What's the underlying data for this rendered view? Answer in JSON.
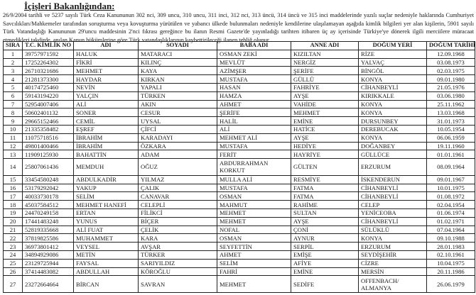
{
  "title": "İçişleri Bakanlığından:",
  "paragraph": "26/9/2004 tarihli ve 5237 sayılı Türk Ceza Kanununun 302 nci, 309 uncu, 310 uncu, 311 inci, 312 nci, 313 üncü, 314 üncü ve 315 inci maddelerinde yazılı suçlar nedeniyle haklarında Cumhuriyet Savcılıkları/Mahkemeler tarafından soruşturma veya kovuşturma yürütülen ve yabancı ülkede bulunmaları nedeniyle kendilerine ulaşılamayan aşağıda kimlik bilgileri yer alan kişilerin, 5901 sayılı Türk Vatandaşlığı Kanununun 29'uncu maddesinin 2'nci fıkrası gereğince bu ilanın Resmi Gazete'de yayınladığı tarihten itibaren üç ay içerisinde Türkiye'ye dönerek ilgili merciilere müracaat etmedikleri takdirde, anılan Kanun hükümlerine göre Türk vatandaşlıklarının kaybettirileceği ilanen tebliğ olunur.",
  "table": {
    "headers": [
      "SIRA",
      "T.C. KİMLİK NO",
      "ADI",
      "SOYADI",
      "BABA ADI",
      "ANNE ADI",
      "DOĞUM YERİ",
      "DOĞUM TARİHİ"
    ],
    "rows": [
      [
        "1",
        "39757971592",
        "HALUK",
        "MATARACI",
        "OSMAN ZEKİ",
        "KIZILTAN",
        "RİZE",
        "12.09.1968"
      ],
      [
        "2",
        "17252264302",
        "FİKRİ",
        "KILINÇ",
        "MEVLÜT",
        "NERGİZ",
        "YALVAÇ",
        "03.08.1973"
      ],
      [
        "3",
        "26710321686",
        "MEHMET",
        "KAYA",
        "AZİMŞER",
        "ŞERİFE",
        "BİNGÖL",
        "02.03.1975"
      ],
      [
        "4",
        "21281373300",
        "HAYDAR",
        "KIRKAN",
        "MUSTAFA",
        "GÜLLÜ",
        "KONYA",
        "09.01.1980"
      ],
      [
        "5",
        "40174725460",
        "NEVİN",
        "YAPALI",
        "HASAN",
        "FAHRİYE",
        "CİHANBEYLİ",
        "21.05.1976"
      ],
      [
        "6",
        "59143194220",
        "YALÇIN",
        "TÜRKEN",
        "HAMZA",
        "AYŞE",
        "KIRIKKALE",
        "03.06.1980"
      ],
      [
        "7",
        "52954007406",
        "ALİ",
        "AKIN",
        "AHMET",
        "VAHİDE",
        "KONYA",
        "25.11.1962"
      ],
      [
        "8",
        "50602401132",
        "SONER",
        "CESUR",
        "ŞERİFE",
        "MEHMET",
        "KONYA",
        "13.03.1968"
      ],
      [
        "9",
        "29665152466",
        "CEMİL",
        "UYSAL",
        "HALİL",
        "EMİNE",
        "DURSUNBEY",
        "31.01.1973"
      ],
      [
        "10",
        "21335358482",
        "EŞREF",
        "ÇİFCİ",
        "ALİ",
        "HATİCE",
        "DEREBUCAK",
        "10.05.1954"
      ],
      [
        "11",
        "11075718516",
        "İBRAHİM",
        "KARADAYI",
        "MEHMET ALİ",
        "AYŞE",
        "KONYA",
        "06.06.1959"
      ],
      [
        "12",
        "49801400466",
        "İBRAHİM",
        "ÖZKARA",
        "MUSTAFA",
        "HEDİYE",
        "DOĞANBEY",
        "19.11.1960"
      ],
      [
        "13",
        "11909125930",
        "BAHATTİN",
        "ADAM",
        "FERİT",
        "HAYRİYE",
        "GÜLLÜCE",
        "01.01.1961"
      ],
      [
        "14",
        "25807061436",
        "MEMDUH",
        "OĞUZ",
        "ABDURRAHMAN KORKUT",
        "GÜLTEN",
        "ERZURUM",
        "08.09.1964"
      ],
      [
        "15",
        "33454580248",
        "ABDULKADİR",
        "YILMAZ",
        "MULLA ALİ",
        "RESMİYE",
        "İSKENDERUN",
        "09.01.1967"
      ],
      [
        "16",
        "53179292042",
        "YAKUP",
        "ÇALIK",
        "MUSTAFA",
        "FATMA",
        "CİHANBEYLİ",
        "10.01.1975"
      ],
      [
        "17",
        "40033730178",
        "SELİM",
        "CANAVAR",
        "OSMAN",
        "FATMA",
        "CİHANBEYLİ",
        "01.08.1972"
      ],
      [
        "18",
        "45037584512",
        "MEHMET HANEFİ",
        "CELEPLİ",
        "MAHMUT",
        "RAHİME",
        "CELEP",
        "02.04.1954"
      ],
      [
        "19",
        "24470249158",
        "ERTAN",
        "FİLİKCİ",
        "MEHMET",
        "SULTAN",
        "YENİCEOBA",
        "01.06.1974"
      ],
      [
        "20",
        "17441483248",
        "YUNUS",
        "BİÇER",
        "MEHMET",
        "AYŞE",
        "CİHANBEYLİ",
        "01.02.1971"
      ],
      [
        "21",
        "52819335668",
        "ALİ FUAT",
        "ÇELİK",
        "NOFAL",
        "ÇONİ",
        "SÜLÜKLÜ",
        "07.04.1964"
      ],
      [
        "22",
        "37819825586",
        "MUHAMMET",
        "KARA",
        "OSMAN",
        "AYNUR",
        "KONYA",
        "09.10.1988"
      ],
      [
        "23",
        "36973801412",
        "VEYSEL",
        "AVŞAR",
        "SEYFETTİN",
        "SERPİL",
        "ERZURUM",
        "28.01.1983"
      ],
      [
        "24",
        "34894929086",
        "METİN",
        "TÜRKER",
        "AHMET",
        "EMİŞE",
        "SEYDİŞEHİR",
        "02.10.1961"
      ],
      [
        "25",
        "23129725944",
        "FAYSAL",
        "SARIYILDIZ",
        "SELİM",
        "AFİYE",
        "CİZRE",
        "10.04.1975"
      ],
      [
        "26",
        "37414483082",
        "ABDULLAH",
        "KÖROĞLU",
        "FAHRİ",
        "EMİNE",
        "MERSİN",
        "20.11.1986"
      ],
      [
        "27",
        "23272664664",
        "BİRCAN",
        "SAVRAN",
        "MEHMET",
        "SEDİFE",
        "OFFENBACH/ ALMANYA",
        "26.06.1979"
      ]
    ]
  }
}
